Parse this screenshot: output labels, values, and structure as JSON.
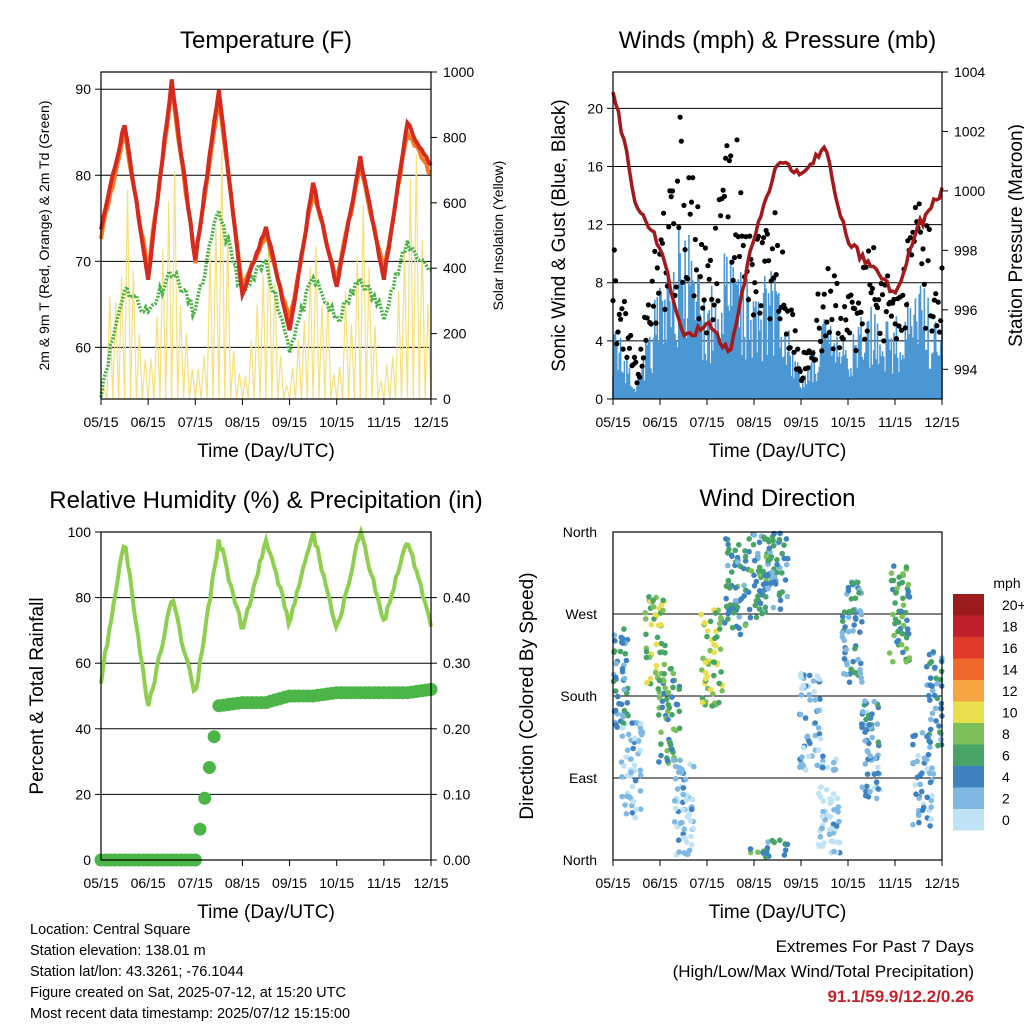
{
  "colors": {
    "temp_red": "#d42a20",
    "temp_orange": "#f47a22",
    "dew_green": "#4ab146",
    "solar_yellow": "#f7e07a",
    "wind_blue": "#4a97d3",
    "gust_black": "#000000",
    "pressure_maroon": "#a21a1c",
    "rh_green": "#8fcf4f",
    "precip_green": "#4cb548",
    "extremes_red": "#c8202a"
  },
  "panels": {
    "temperature": {
      "title": "Temperature (F)",
      "xlabel": "Time (Day/UTC)",
      "ylabel_left": "2m & 9m T (Red, Orange) & 2m Td (Green)",
      "ylabel_right": "Solar Insolation (Yellow)"
    },
    "winds": {
      "title": "Winds (mph) & Pressure (mb)",
      "xlabel": "Time (Day/UTC)",
      "ylabel_left": "Sonic Wind & Gust (Blue, Black)",
      "ylabel_right": "Station Pressure (Maroon)"
    },
    "humidity": {
      "title": "Relative Humidity (%) & Precipitation (in)",
      "xlabel": "Time (Day/UTC)",
      "ylabel_left": "Percent & Total Rainfall"
    },
    "direction": {
      "title": "Wind Direction",
      "xlabel": "Time (Day/UTC)",
      "ylabel_left": "Direction (Colored By Speed)",
      "legend_title": "mph",
      "legend_labels": [
        "20+",
        "18",
        "16",
        "14",
        "12",
        "10",
        "8",
        "6",
        "4",
        "2",
        "0"
      ],
      "legend_colors": [
        "#9c1b1d",
        "#c0202a",
        "#e13b2b",
        "#f0682c",
        "#f7a443",
        "#e9de4c",
        "#7cc05a",
        "#47a466",
        "#3e83c0",
        "#7eb8e3",
        "#bfe3f5"
      ]
    }
  },
  "info": {
    "location": "Location: Central Square",
    "elevation": "Station elevation: 138.01 m",
    "latlon": "Station lat/lon: 43.3261; -76.1044",
    "created": "Figure created on Sat, 2025-07-12, at 15:20 UTC",
    "latest": "Most recent data timestamp: 2025/07/12 15:15:00"
  },
  "extremes": {
    "line1": "Extremes For Past 7 Days",
    "line2": "(High/Low/Max Wind/Total Precipitation)",
    "values": "91.1/59.9/12.2/0.26"
  },
  "chart_data": [
    {
      "type": "line",
      "title": "Temperature (F)",
      "xlabel": "Time (Day/UTC)",
      "ylabel": "2m & 9m T (Red, Orange) & 2m Td (Green)",
      "ylabel_right": "Solar Insolation (Yellow)",
      "x_ticks": [
        "05/15",
        "06/15",
        "07/15",
        "08/15",
        "09/15",
        "10/15",
        "11/15",
        "12/15"
      ],
      "x": [
        0,
        0.5,
        1,
        1.5,
        2,
        2.5,
        3,
        3.5,
        4,
        4.5,
        5,
        5.5,
        6,
        6.5,
        7
      ],
      "ylim": [
        54,
        92
      ],
      "y_ticks": [
        60,
        70,
        80,
        90
      ],
      "ylim_right": [
        0,
        1000
      ],
      "y_ticks_right": [
        0,
        200,
        400,
        600,
        800,
        1000
      ],
      "series": [
        {
          "name": "2m T",
          "values": [
            74,
            86,
            68,
            91,
            70,
            90,
            66,
            74,
            62,
            79,
            67,
            82,
            68,
            86,
            81
          ]
        },
        {
          "name": "9m T",
          "values": [
            73,
            85,
            69,
            90,
            70,
            89,
            67,
            73,
            63,
            78,
            68,
            81,
            69,
            85,
            80
          ]
        },
        {
          "name": "2m Td",
          "values": [
            55,
            67,
            64,
            69,
            64,
            76,
            66,
            70,
            60,
            68,
            63,
            68,
            64,
            72,
            69
          ]
        },
        {
          "name": "Solar Insolation",
          "values": [
            0,
            880,
            40,
            900,
            0,
            920,
            0,
            600,
            0,
            850,
            0,
            950,
            0,
            900,
            600
          ]
        }
      ],
      "grid": true
    },
    {
      "type": "scatter",
      "title": "Winds (mph) & Pressure (mb)",
      "xlabel": "Time (Day/UTC)",
      "ylabel": "Sonic Wind & Gust (Blue, Black)",
      "ylabel_right": "Station Pressure (Maroon)",
      "x_ticks": [
        "05/15",
        "06/15",
        "07/15",
        "08/15",
        "09/15",
        "10/15",
        "11/15",
        "12/15"
      ],
      "x": [
        0,
        0.5,
        1,
        1.5,
        2,
        2.5,
        3,
        3.5,
        4,
        4.5,
        5,
        5.5,
        6,
        6.5,
        7
      ],
      "ylim": [
        0,
        22.5
      ],
      "y_ticks": [
        0,
        4,
        8,
        12,
        16,
        20
      ],
      "ylim_right": [
        993,
        1004
      ],
      "y_ticks_right": [
        994,
        996,
        998,
        1000,
        1002,
        1004
      ],
      "series": [
        {
          "name": "Sonic Wind",
          "values": [
            4,
            1,
            6,
            9,
            5,
            8,
            6,
            7,
            1,
            4,
            3,
            5,
            4,
            6,
            4
          ]
        },
        {
          "name": "Gust",
          "values": [
            9,
            2,
            11,
            18,
            8,
            17,
            10,
            11,
            2,
            8,
            6,
            9,
            7,
            12,
            8
          ]
        },
        {
          "name": "Station Pressure",
          "values": [
            1003.5,
            999.5,
            998.2,
            995,
            995.5,
            994.5,
            998.5,
            1001.0,
            1000.5,
            1001.5,
            998.2,
            997.5,
            996.5,
            998.8,
            1000.0
          ]
        }
      ],
      "grid": true
    },
    {
      "type": "line",
      "title": "Relative Humidity (%) & Precipitation (in)",
      "xlabel": "Time (Day/UTC)",
      "ylabel": "Percent & Total Rainfall",
      "x_ticks": [
        "05/15",
        "06/15",
        "07/15",
        "08/15",
        "09/15",
        "10/15",
        "11/15",
        "12/15"
      ],
      "x": [
        0,
        0.5,
        1,
        1.5,
        2,
        2.5,
        3,
        3.5,
        4,
        4.5,
        5,
        5.5,
        6,
        6.5,
        7
      ],
      "ylim": [
        0,
        100
      ],
      "y_ticks": [
        0,
        20,
        40,
        60,
        80,
        100
      ],
      "ylim_right": [
        0,
        0.5
      ],
      "y_ticks_right": [
        0.0,
        0.1,
        0.2,
        0.3,
        0.4
      ],
      "series": [
        {
          "name": "Relative Humidity",
          "values": [
            55,
            98,
            46,
            80,
            50,
            98,
            70,
            98,
            72,
            100,
            70,
            100,
            72,
            98,
            72
          ]
        },
        {
          "name": "Precipitation",
          "values": [
            0,
            0,
            0,
            0,
            0,
            0.235,
            0.24,
            0.24,
            0.25,
            0.25,
            0.255,
            0.255,
            0.255,
            0.255,
            0.26
          ]
        }
      ],
      "grid": true
    },
    {
      "type": "scatter",
      "title": "Wind Direction",
      "xlabel": "Time (Day/UTC)",
      "ylabel": "Direction (Colored By Speed)",
      "x_ticks": [
        "05/15",
        "06/15",
        "07/15",
        "08/15",
        "09/15",
        "10/15",
        "11/15",
        "12/15"
      ],
      "y_ticks": [
        "North",
        "East",
        "South",
        "West",
        "North"
      ],
      "ylim": [
        0,
        360
      ],
      "colorbar": {
        "label": "mph",
        "ticks": [
          "0",
          "2",
          "4",
          "6",
          "8",
          "10",
          "12",
          "14",
          "16",
          "18",
          "20+"
        ]
      },
      "series": [
        {
          "name": "Wind Direction",
          "x": [
            0.1,
            0.4,
            0.9,
            1.2,
            1.5,
            2.1,
            2.6,
            3.1,
            3.5,
            4.2,
            4.6,
            5.1,
            5.5,
            6.1,
            6.6,
            6.9
          ],
          "values": [
            200,
            100,
            240,
            160,
            60,
            220,
            300,
            320,
            330,
            150,
            60,
            250,
            120,
            270,
            90,
            180
          ],
          "speeds": [
            4,
            1,
            8,
            6,
            1,
            8,
            5,
            5,
            4,
            2,
            1,
            4,
            3,
            6,
            2,
            4
          ]
        }
      ],
      "grid": true
    }
  ]
}
